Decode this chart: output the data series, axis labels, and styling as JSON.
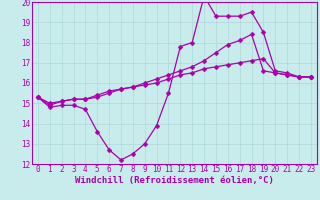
{
  "background_color": "#c8ecec",
  "grid_color": "#b0d8d8",
  "line_color": "#aa00aa",
  "marker": "D",
  "markersize": 2.5,
  "linewidth": 0.9,
  "xlabel": "Windchill (Refroidissement éolien,°C)",
  "xlabel_fontsize": 6.5,
  "tick_fontsize": 5.5,
  "xlim": [
    -0.5,
    23.5
  ],
  "ylim": [
    12,
    20
  ],
  "yticks": [
    12,
    13,
    14,
    15,
    16,
    17,
    18,
    19,
    20
  ],
  "xticks": [
    0,
    1,
    2,
    3,
    4,
    5,
    6,
    7,
    8,
    9,
    10,
    11,
    12,
    13,
    14,
    15,
    16,
    17,
    18,
    19,
    20,
    21,
    22,
    23
  ],
  "lines": [
    {
      "x": [
        0,
        1,
        2,
        3,
        4,
        5,
        6,
        7,
        8,
        9,
        10,
        11,
        12,
        13,
        14,
        15,
        16,
        17,
        18,
        19,
        20,
        21,
        22,
        23
      ],
      "y": [
        15.3,
        14.8,
        14.9,
        14.9,
        14.7,
        13.6,
        12.7,
        12.2,
        12.5,
        13.0,
        13.9,
        15.5,
        17.8,
        18.0,
        20.3,
        19.3,
        19.3,
        19.3,
        19.5,
        18.5,
        16.6,
        16.5,
        16.3,
        16.3
      ]
    },
    {
      "x": [
        0,
        1,
        2,
        3,
        4,
        5,
        6,
        7,
        8,
        9,
        10,
        11,
        12,
        13,
        14,
        15,
        16,
        17,
        18,
        19,
        20,
        21,
        22,
        23
      ],
      "y": [
        15.3,
        14.9,
        15.1,
        15.2,
        15.2,
        15.4,
        15.6,
        15.7,
        15.8,
        16.0,
        16.2,
        16.4,
        16.6,
        16.8,
        17.1,
        17.5,
        17.9,
        18.1,
        18.4,
        16.6,
        16.5,
        16.4,
        16.3,
        16.3
      ]
    },
    {
      "x": [
        0,
        1,
        2,
        3,
        4,
        5,
        6,
        7,
        8,
        9,
        10,
        11,
        12,
        13,
        14,
        15,
        16,
        17,
        18,
        19,
        20,
        21,
        22,
        23
      ],
      "y": [
        15.3,
        15.0,
        15.1,
        15.2,
        15.2,
        15.3,
        15.5,
        15.7,
        15.8,
        15.9,
        16.0,
        16.2,
        16.4,
        16.5,
        16.7,
        16.8,
        16.9,
        17.0,
        17.1,
        17.2,
        16.5,
        16.4,
        16.3,
        16.3
      ]
    }
  ]
}
